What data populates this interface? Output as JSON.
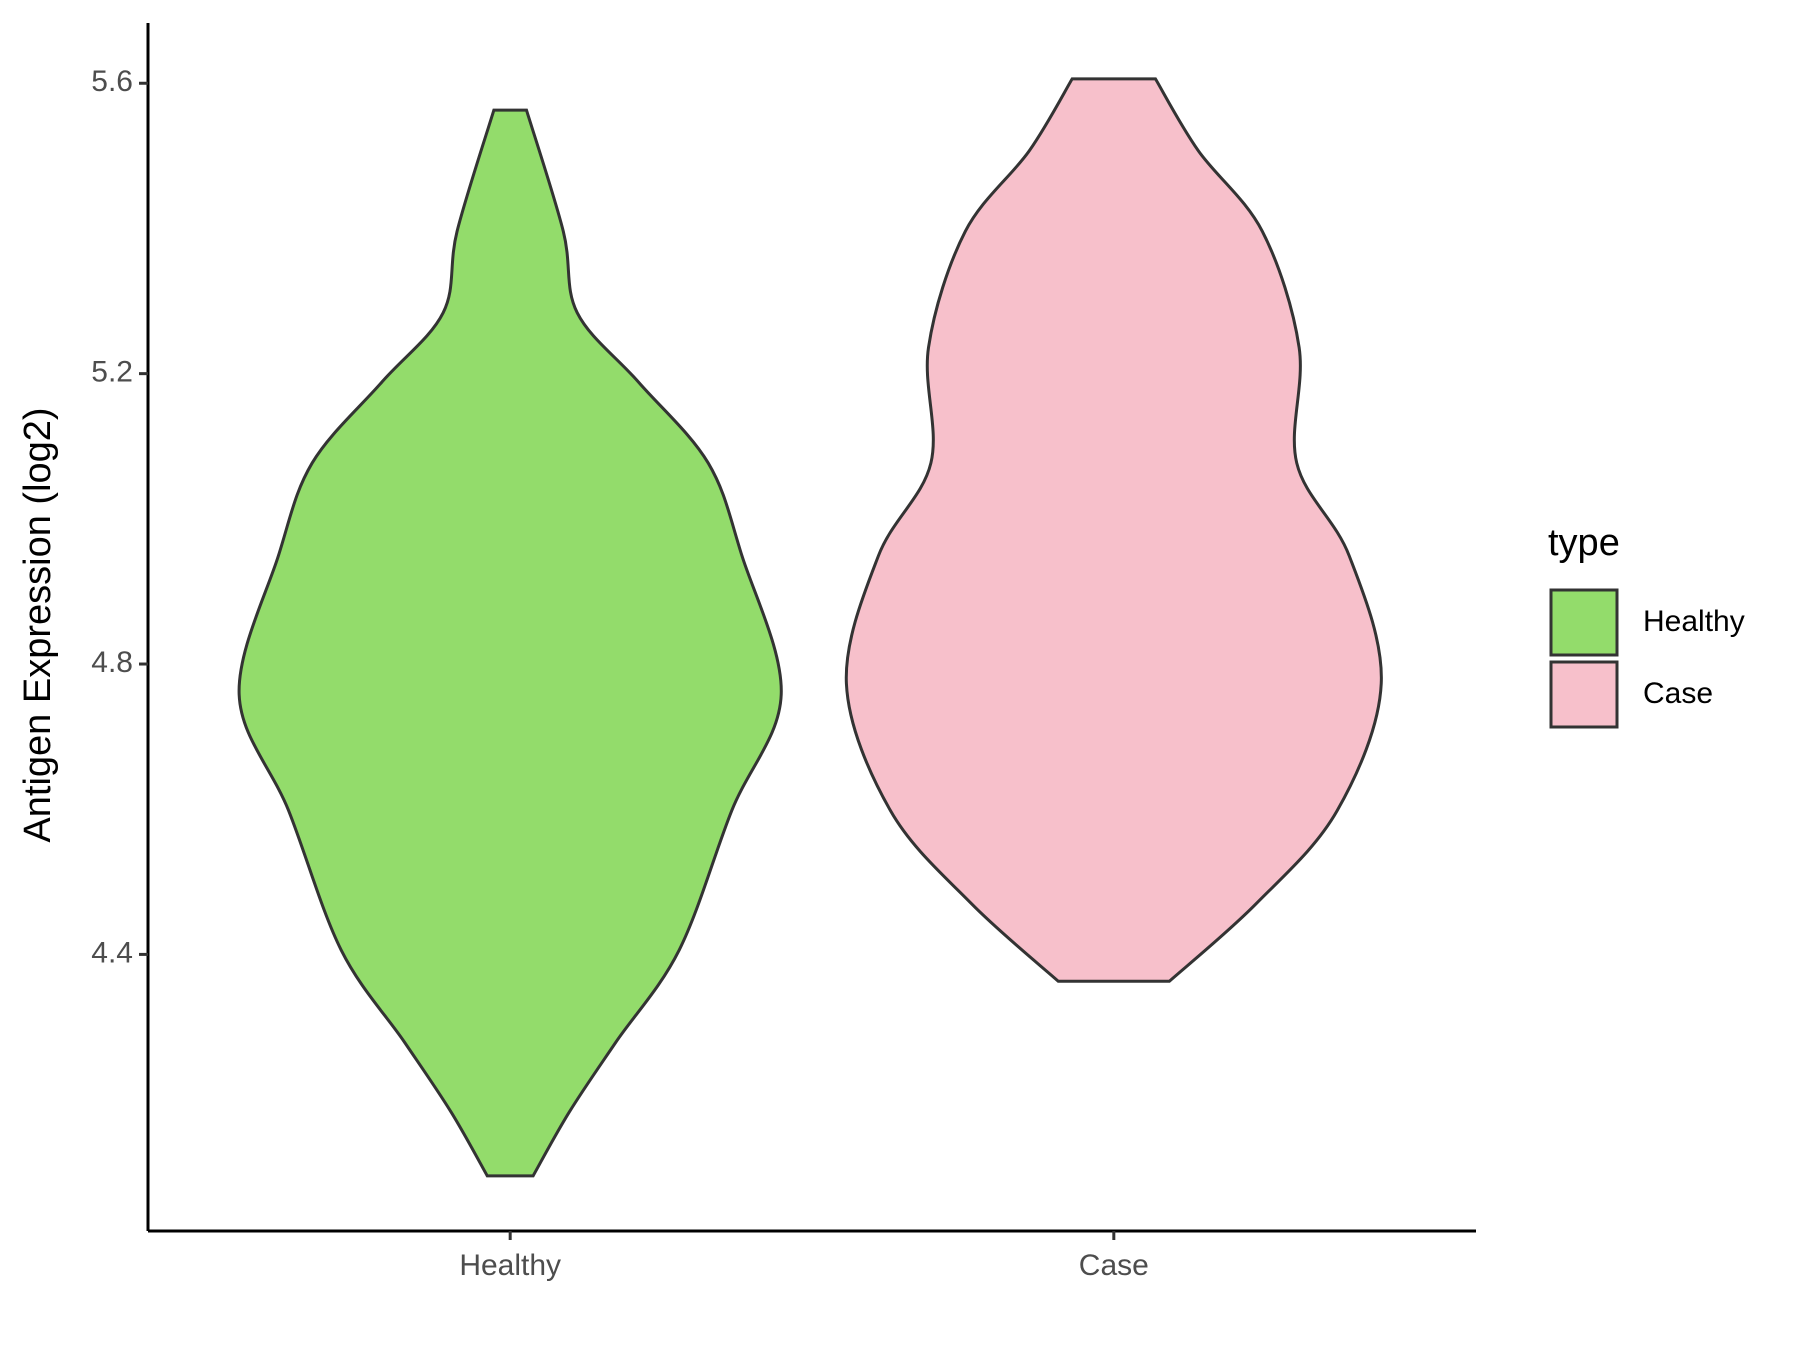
{
  "chart_data": {
    "type": "violin",
    "y_label": "Antigen Expression (log2)",
    "categories": [
      "Healthy",
      "Case"
    ],
    "ylim": [
      4.019,
      5.683
    ],
    "yticks": [
      {
        "value": 4.4,
        "label": "4.4"
      },
      {
        "value": 4.8,
        "label": "4.8"
      },
      {
        "value": 5.2,
        "label": "5.2"
      },
      {
        "value": 5.6,
        "label": "5.6"
      }
    ],
    "legend_title": "type",
    "legend_position": "right",
    "series": [
      {
        "name": "Healthy",
        "color": "#93dc6b",
        "y": [
          5.563,
          5.396,
          5.284,
          5.188,
          5.077,
          4.949,
          4.758,
          4.598,
          4.406,
          4.279,
          4.183,
          4.095
        ],
        "half_width": [
          0.027,
          0.088,
          0.111,
          0.213,
          0.328,
          0.384,
          0.449,
          0.367,
          0.28,
          0.175,
          0.098,
          0.038
        ]
      },
      {
        "name": "Case",
        "color": "#f7c0cb",
        "y": [
          5.606,
          5.507,
          5.396,
          5.236,
          5.077,
          4.949,
          4.773,
          4.598,
          4.47,
          4.363
        ],
        "half_width": [
          0.069,
          0.14,
          0.246,
          0.307,
          0.303,
          0.39,
          0.443,
          0.37,
          0.236,
          0.092
        ]
      }
    ]
  }
}
